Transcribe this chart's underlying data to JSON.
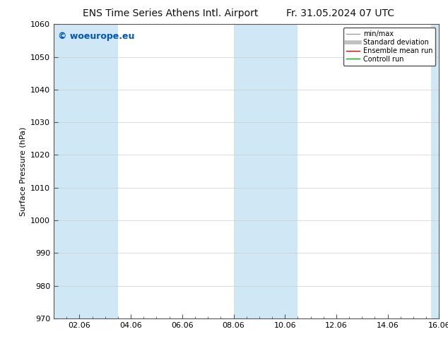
{
  "title_left": "ENS Time Series Athens Intl. Airport",
  "title_right": "Fr. 31.05.2024 07 UTC",
  "ylabel": "Surface Pressure (hPa)",
  "ylim": [
    970,
    1060
  ],
  "yticks": [
    970,
    980,
    990,
    1000,
    1010,
    1020,
    1030,
    1040,
    1050,
    1060
  ],
  "x_start": 0.0,
  "x_end": 15.0,
  "xtick_labels": [
    "02.06",
    "04.06",
    "06.06",
    "08.06",
    "10.06",
    "12.06",
    "14.06",
    "16.06"
  ],
  "xtick_positions": [
    1.0,
    3.0,
    5.0,
    7.0,
    9.0,
    11.0,
    13.0,
    15.0
  ],
  "shaded_bands": [
    {
      "xmin": 0.0,
      "xmax": 2.5
    },
    {
      "xmin": 7.0,
      "xmax": 9.5
    },
    {
      "xmin": 14.7,
      "xmax": 15.0
    }
  ],
  "band_color": "#d0e8f5",
  "background_color": "#ffffff",
  "watermark": "© woeurope.eu",
  "watermark_color": "#0055bb",
  "legend_items": [
    {
      "label": "min/max",
      "color": "#a0a0a0",
      "lw": 1.0,
      "ls": "-"
    },
    {
      "label": "Standard deviation",
      "color": "#c0c0c0",
      "lw": 4,
      "ls": "-"
    },
    {
      "label": "Ensemble mean run",
      "color": "#dd0000",
      "lw": 1.0,
      "ls": "-"
    },
    {
      "label": "Controll run",
      "color": "#00aa00",
      "lw": 1.0,
      "ls": "-"
    }
  ],
  "title_fontsize": 10,
  "tick_fontsize": 8,
  "ylabel_fontsize": 8,
  "watermark_fontsize": 9,
  "legend_fontsize": 7,
  "grid_color": "#cccccc",
  "spine_color": "#555555",
  "fig_bg_color": "#ffffff",
  "figsize": [
    6.34,
    4.9
  ],
  "dpi": 100
}
